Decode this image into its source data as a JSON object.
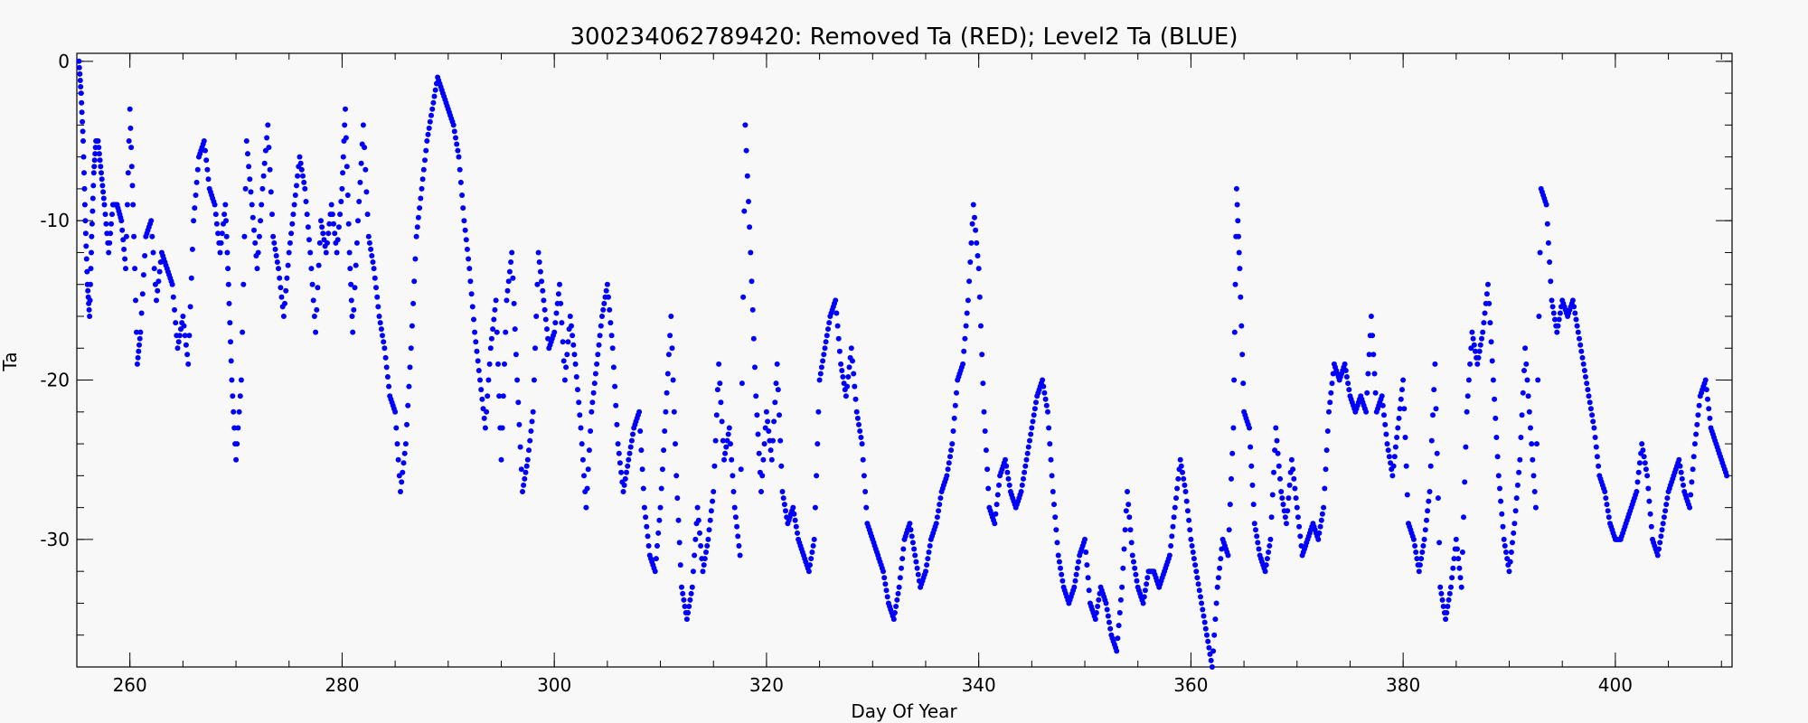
{
  "chart_data": {
    "type": "scatter",
    "title": "300234062789420: Removed Ta (RED); Level2 Ta (BLUE)",
    "xlabel": "Day Of Year",
    "ylabel": "Ta",
    "xlim": [
      255,
      411
    ],
    "ylim": [
      -38,
      0.5
    ],
    "xticks": [
      260,
      280,
      300,
      320,
      340,
      360,
      380,
      400
    ],
    "yticks": [
      0,
      -10,
      -20,
      -30
    ],
    "grid": false,
    "series": [
      {
        "color": "#0000ff",
        "points": [
          [
            255.2,
            0
          ],
          [
            255.4,
            -2
          ],
          [
            255.6,
            -5
          ],
          [
            255.8,
            -10
          ],
          [
            256.0,
            -14
          ],
          [
            256.2,
            -16
          ],
          [
            256.4,
            -11
          ],
          [
            256.6,
            -7
          ],
          [
            256.8,
            -5
          ],
          [
            257.0,
            -5
          ],
          [
            257.3,
            -7
          ],
          [
            257.6,
            -9
          ],
          [
            258.0,
            -12
          ],
          [
            258.4,
            -9
          ],
          [
            258.8,
            -9
          ],
          [
            259.2,
            -10
          ],
          [
            259.6,
            -13
          ],
          [
            260.0,
            -3
          ],
          [
            260.3,
            -9
          ],
          [
            260.7,
            -19
          ],
          [
            261.0,
            -17
          ],
          [
            261.5,
            -11
          ],
          [
            262.0,
            -10
          ],
          [
            262.5,
            -15
          ],
          [
            263.0,
            -12
          ],
          [
            263.5,
            -13
          ],
          [
            264.0,
            -14
          ],
          [
            264.5,
            -18
          ],
          [
            265.0,
            -16
          ],
          [
            265.5,
            -19
          ],
          [
            266.0,
            -10
          ],
          [
            266.5,
            -6
          ],
          [
            267.0,
            -5
          ],
          [
            267.5,
            -8
          ],
          [
            268.0,
            -9
          ],
          [
            268.5,
            -12
          ],
          [
            269.0,
            -9
          ],
          [
            269.3,
            -14
          ],
          [
            269.6,
            -20
          ],
          [
            270.0,
            -25
          ],
          [
            270.5,
            -20
          ],
          [
            271.0,
            -5
          ],
          [
            271.5,
            -9
          ],
          [
            272.0,
            -13
          ],
          [
            272.5,
            -8
          ],
          [
            273.0,
            -4
          ],
          [
            273.5,
            -11
          ],
          [
            274.0,
            -13
          ],
          [
            274.5,
            -16
          ],
          [
            275.0,
            -12
          ],
          [
            275.5,
            -9
          ],
          [
            276.0,
            -6
          ],
          [
            276.5,
            -8
          ],
          [
            277.0,
            -12
          ],
          [
            277.5,
            -17
          ],
          [
            278.0,
            -10
          ],
          [
            278.5,
            -12
          ],
          [
            279.0,
            -9
          ],
          [
            279.5,
            -12
          ],
          [
            280.0,
            -8
          ],
          [
            280.3,
            -3
          ],
          [
            280.7,
            -12
          ],
          [
            281.0,
            -17
          ],
          [
            281.5,
            -10
          ],
          [
            282.0,
            -4
          ],
          [
            282.5,
            -11
          ],
          [
            283.0,
            -13
          ],
          [
            283.5,
            -16
          ],
          [
            284.0,
            -18
          ],
          [
            284.5,
            -21
          ],
          [
            285.0,
            -22
          ],
          [
            285.5,
            -27
          ],
          [
            286.0,
            -24
          ],
          [
            286.5,
            -18
          ],
          [
            287.0,
            -11
          ],
          [
            287.5,
            -8
          ],
          [
            288.0,
            -5
          ],
          [
            288.5,
            -3
          ],
          [
            289.0,
            -1
          ],
          [
            289.5,
            -2
          ],
          [
            290.0,
            -3
          ],
          [
            290.5,
            -4
          ],
          [
            291.0,
            -6
          ],
          [
            291.5,
            -10
          ],
          [
            292.0,
            -13
          ],
          [
            292.5,
            -17
          ],
          [
            293.0,
            -20
          ],
          [
            293.5,
            -23
          ],
          [
            294.0,
            -18
          ],
          [
            294.5,
            -15
          ],
          [
            295.0,
            -25
          ],
          [
            295.5,
            -15
          ],
          [
            296.0,
            -12
          ],
          [
            296.5,
            -20
          ],
          [
            297.0,
            -27
          ],
          [
            297.5,
            -25
          ],
          [
            298.0,
            -22
          ],
          [
            298.5,
            -12
          ],
          [
            299.0,
            -15
          ],
          [
            299.5,
            -18
          ],
          [
            300.0,
            -17
          ],
          [
            300.5,
            -14
          ],
          [
            301.0,
            -20
          ],
          [
            301.5,
            -16
          ],
          [
            302.0,
            -19
          ],
          [
            302.5,
            -23
          ],
          [
            303.0,
            -28
          ],
          [
            303.5,
            -22
          ],
          [
            304.0,
            -19
          ],
          [
            304.5,
            -16
          ],
          [
            305.0,
            -14
          ],
          [
            305.5,
            -18
          ],
          [
            306.0,
            -24
          ],
          [
            306.5,
            -27
          ],
          [
            307.0,
            -25
          ],
          [
            307.5,
            -23
          ],
          [
            308.0,
            -22
          ],
          [
            308.5,
            -28
          ],
          [
            309.0,
            -31
          ],
          [
            309.5,
            -32
          ],
          [
            310.0,
            -28
          ],
          [
            310.5,
            -22
          ],
          [
            311.0,
            -16
          ],
          [
            311.5,
            -26
          ],
          [
            312.0,
            -33
          ],
          [
            312.5,
            -35
          ],
          [
            313.0,
            -33
          ],
          [
            313.5,
            -28
          ],
          [
            314.0,
            -32
          ],
          [
            314.5,
            -30
          ],
          [
            315.0,
            -27
          ],
          [
            315.5,
            -19
          ],
          [
            316.0,
            -25
          ],
          [
            316.5,
            -23
          ],
          [
            317.0,
            -28
          ],
          [
            317.5,
            -31
          ],
          [
            318.0,
            -4
          ],
          [
            318.5,
            -12
          ],
          [
            319.0,
            -21
          ],
          [
            319.5,
            -27
          ],
          [
            320.0,
            -22
          ],
          [
            320.5,
            -25
          ],
          [
            321.0,
            -19
          ],
          [
            321.5,
            -27
          ],
          [
            322.0,
            -29
          ],
          [
            322.5,
            -28
          ],
          [
            323.0,
            -30
          ],
          [
            323.5,
            -31
          ],
          [
            324.0,
            -32
          ],
          [
            324.5,
            -30
          ],
          [
            325.0,
            -20
          ],
          [
            325.5,
            -18
          ],
          [
            326.0,
            -16
          ],
          [
            326.5,
            -15
          ],
          [
            327.0,
            -19
          ],
          [
            327.5,
            -21
          ],
          [
            328.0,
            -18
          ],
          [
            328.5,
            -22
          ],
          [
            329.0,
            -24
          ],
          [
            329.5,
            -29
          ],
          [
            330.0,
            -30
          ],
          [
            330.5,
            -31
          ],
          [
            331.0,
            -32
          ],
          [
            331.5,
            -34
          ],
          [
            332.0,
            -35
          ],
          [
            332.5,
            -33
          ],
          [
            333.0,
            -30
          ],
          [
            333.5,
            -29
          ],
          [
            334.0,
            -31
          ],
          [
            334.5,
            -33
          ],
          [
            335.0,
            -32
          ],
          [
            335.5,
            -30
          ],
          [
            336.0,
            -29
          ],
          [
            336.5,
            -27
          ],
          [
            337.0,
            -26
          ],
          [
            337.5,
            -24
          ],
          [
            338.0,
            -20
          ],
          [
            338.5,
            -19
          ],
          [
            339.0,
            -15
          ],
          [
            339.5,
            -9
          ],
          [
            340.0,
            -13
          ],
          [
            340.5,
            -22
          ],
          [
            341.0,
            -28
          ],
          [
            341.5,
            -29
          ],
          [
            342.0,
            -26
          ],
          [
            342.5,
            -25
          ],
          [
            343.0,
            -27
          ],
          [
            343.5,
            -28
          ],
          [
            344.0,
            -27
          ],
          [
            344.5,
            -25
          ],
          [
            345.0,
            -23
          ],
          [
            345.5,
            -21
          ],
          [
            346.0,
            -20
          ],
          [
            346.5,
            -22
          ],
          [
            347.0,
            -27
          ],
          [
            347.5,
            -31
          ],
          [
            348.0,
            -33
          ],
          [
            348.5,
            -34
          ],
          [
            349.0,
            -33
          ],
          [
            349.5,
            -31
          ],
          [
            350.0,
            -30
          ],
          [
            350.5,
            -34
          ],
          [
            351.0,
            -35
          ],
          [
            351.5,
            -33
          ],
          [
            352.0,
            -34
          ],
          [
            352.5,
            -36
          ],
          [
            353.0,
            -37
          ],
          [
            353.5,
            -33
          ],
          [
            354.0,
            -27
          ],
          [
            354.5,
            -31
          ],
          [
            355.0,
            -33
          ],
          [
            355.5,
            -34
          ],
          [
            356.0,
            -32
          ],
          [
            356.5,
            -32
          ],
          [
            357.0,
            -33
          ],
          [
            357.5,
            -32
          ],
          [
            358.0,
            -31
          ],
          [
            358.5,
            -28
          ],
          [
            359.0,
            -25
          ],
          [
            359.5,
            -27
          ],
          [
            360.0,
            -30
          ],
          [
            360.5,
            -32
          ],
          [
            361.0,
            -34
          ],
          [
            361.5,
            -36
          ],
          [
            362.0,
            -38
          ],
          [
            362.5,
            -33
          ],
          [
            363.0,
            -30
          ],
          [
            363.5,
            -31
          ],
          [
            364.0,
            -23
          ],
          [
            364.3,
            -8
          ],
          [
            364.6,
            -13
          ],
          [
            365.0,
            -22
          ],
          [
            365.5,
            -23
          ],
          [
            366.0,
            -29
          ],
          [
            366.5,
            -31
          ],
          [
            367.0,
            -32
          ],
          [
            367.5,
            -30
          ],
          [
            368.0,
            -23
          ],
          [
            368.5,
            -27
          ],
          [
            369.0,
            -29
          ],
          [
            369.5,
            -25
          ],
          [
            370.0,
            -28
          ],
          [
            370.5,
            -31
          ],
          [
            371.0,
            -30
          ],
          [
            371.5,
            -29
          ],
          [
            372.0,
            -30
          ],
          [
            372.5,
            -28
          ],
          [
            373.0,
            -22
          ],
          [
            373.5,
            -19
          ],
          [
            374.0,
            -20
          ],
          [
            374.5,
            -19
          ],
          [
            375.0,
            -21
          ],
          [
            375.5,
            -22
          ],
          [
            376.0,
            -21
          ],
          [
            376.5,
            -22
          ],
          [
            377.0,
            -16
          ],
          [
            377.5,
            -22
          ],
          [
            378.0,
            -21
          ],
          [
            378.5,
            -24
          ],
          [
            379.0,
            -26
          ],
          [
            379.5,
            -23
          ],
          [
            380.0,
            -20
          ],
          [
            380.5,
            -29
          ],
          [
            381.0,
            -30
          ],
          [
            381.5,
            -32
          ],
          [
            382.0,
            -30
          ],
          [
            382.5,
            -27
          ],
          [
            383.0,
            -19
          ],
          [
            383.5,
            -33
          ],
          [
            384.0,
            -35
          ],
          [
            384.5,
            -33
          ],
          [
            385.0,
            -30
          ],
          [
            385.5,
            -33
          ],
          [
            386.0,
            -22
          ],
          [
            386.5,
            -17
          ],
          [
            387.0,
            -19
          ],
          [
            387.5,
            -17
          ],
          [
            388.0,
            -14
          ],
          [
            388.5,
            -20
          ],
          [
            389.0,
            -26
          ],
          [
            389.5,
            -30
          ],
          [
            390.0,
            -32
          ],
          [
            390.5,
            -29
          ],
          [
            391.0,
            -25
          ],
          [
            391.5,
            -18
          ],
          [
            392.0,
            -23
          ],
          [
            392.5,
            -28
          ],
          [
            393.0,
            -8
          ],
          [
            393.5,
            -9
          ],
          [
            394.0,
            -15
          ],
          [
            394.5,
            -17
          ],
          [
            395.0,
            -15
          ],
          [
            395.5,
            -16
          ],
          [
            396.0,
            -15
          ],
          [
            396.5,
            -17
          ],
          [
            397.0,
            -19
          ],
          [
            397.5,
            -21
          ],
          [
            398.0,
            -23
          ],
          [
            398.5,
            -26
          ],
          [
            399.0,
            -27
          ],
          [
            399.5,
            -29
          ],
          [
            400.0,
            -30
          ],
          [
            400.5,
            -30
          ],
          [
            401.0,
            -29
          ],
          [
            401.5,
            -28
          ],
          [
            402.0,
            -27
          ],
          [
            402.5,
            -24
          ],
          [
            403.0,
            -26
          ],
          [
            403.5,
            -30
          ],
          [
            404.0,
            -31
          ],
          [
            404.5,
            -29
          ],
          [
            405.0,
            -27
          ],
          [
            405.5,
            -26
          ],
          [
            406.0,
            -25
          ],
          [
            406.5,
            -27
          ],
          [
            407.0,
            -28
          ],
          [
            407.5,
            -24
          ],
          [
            408.0,
            -21
          ],
          [
            408.5,
            -20
          ],
          [
            409.0,
            -23
          ],
          [
            409.5,
            -24
          ],
          [
            410.0,
            -25
          ],
          [
            410.5,
            -26
          ]
        ]
      }
    ]
  }
}
